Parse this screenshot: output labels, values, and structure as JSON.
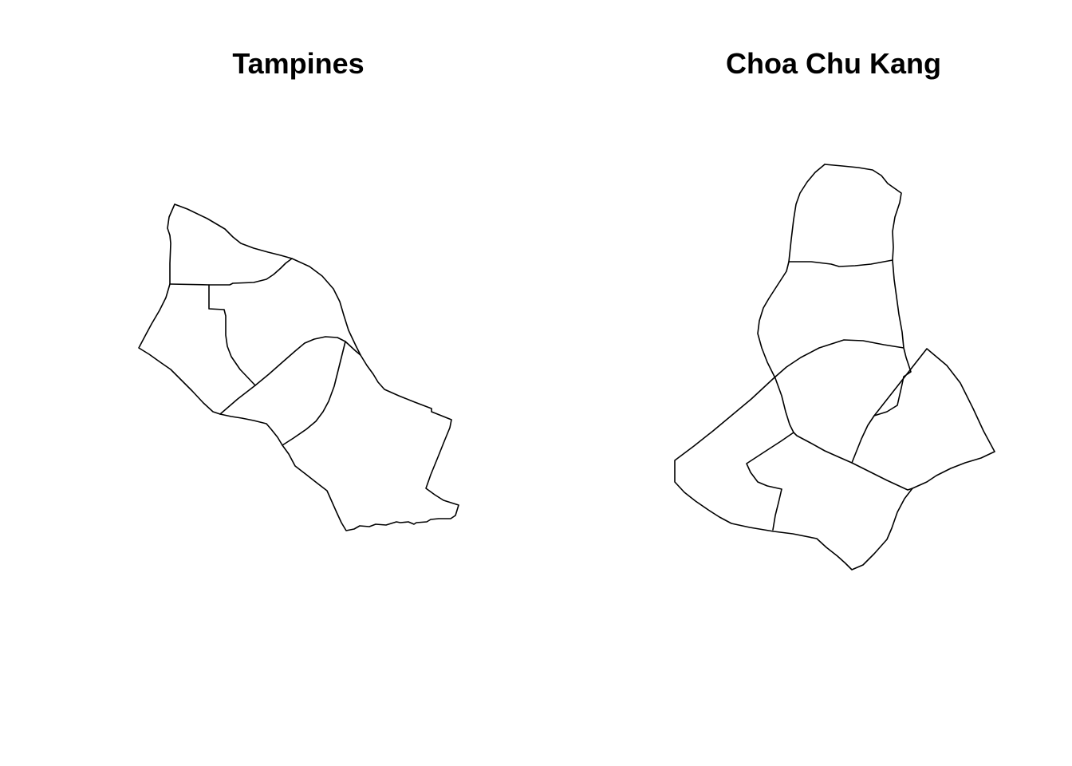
{
  "maps": [
    {
      "title": "Tampines",
      "stroke_color": "#000000",
      "fill_color": "#ffffff"
    },
    {
      "title": "Choa Chu Kang",
      "stroke_color": "#000000",
      "fill_color": "#ffffff"
    }
  ]
}
